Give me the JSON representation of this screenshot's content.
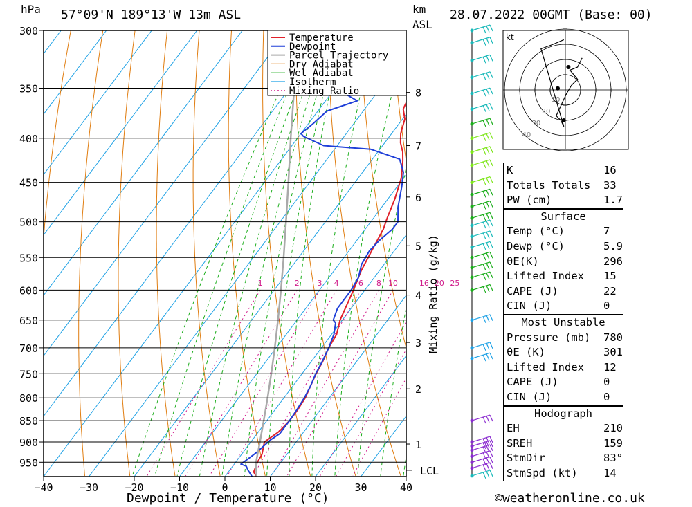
{
  "header": {
    "hpa_label": "hPa",
    "location": "57°09'N  189°13'W  13m  ASL",
    "km_label": "km",
    "asl_label": "ASL",
    "datetime": "28.07.2022  00GMT  (Base: 00)"
  },
  "footer": {
    "xlabel": "Dewpoint / Temperature (°C)",
    "copyright": "©weatheronline.co.uk"
  },
  "chart_data": {
    "type": "line",
    "title": "",
    "xlabel": "Dewpoint / Temperature (°C)",
    "ylabel": "hPa",
    "right_ylabel": "Mixing Ratio (g/kg)",
    "x_ticks": [
      -40,
      -30,
      -20,
      -10,
      0,
      10,
      20,
      30,
      40
    ],
    "pressure_ticks": [
      300,
      350,
      400,
      450,
      500,
      550,
      600,
      650,
      700,
      750,
      800,
      850,
      900,
      950
    ],
    "km_ticks": [
      "1",
      "2",
      "3",
      "4",
      "5",
      "6",
      "7",
      "8"
    ],
    "km_pressures": [
      905,
      781,
      690,
      608,
      533,
      468,
      408,
      354
    ],
    "lcl_label": "LCL",
    "lcl_pressure": 985,
    "mixing_ratio_labels": [
      "1",
      "2",
      "3",
      "4",
      "6",
      "8",
      "10",
      "16",
      "20",
      "25"
    ],
    "mixing_ratio_values": [
      1,
      2,
      3,
      4,
      6,
      8,
      10,
      16,
      20,
      25
    ],
    "legend": [
      "Temperature",
      "Dewpoint",
      "Parcel Trajectory",
      "Dry Adiabat",
      "Wet Adiabat",
      "Isotherm",
      "Mixing Ratio"
    ],
    "colors": {
      "temperature": "#e0202a",
      "dewpoint": "#1f3fd8",
      "parcel": "#aaaaaa",
      "dry_adiabat": "#e07d10",
      "wet_adiabat": "#1cae1c",
      "isotherm": "#1fa2e6",
      "mixing_ratio": "#d01a8a"
    },
    "series": [
      {
        "name": "Temperature",
        "points": [
          [
            7,
            987
          ],
          [
            5.6,
            975
          ],
          [
            4.8,
            950
          ],
          [
            4.5,
            930
          ],
          [
            3,
            900
          ],
          [
            4.5,
            875
          ],
          [
            5,
            850
          ],
          [
            5,
            825
          ],
          [
            4.7,
            800
          ],
          [
            3.9,
            775
          ],
          [
            3.1,
            750
          ],
          [
            2.5,
            725
          ],
          [
            1.6,
            700
          ],
          [
            1.1,
            675
          ],
          [
            -0.5,
            650
          ],
          [
            -2.5,
            600
          ],
          [
            -4,
            570
          ],
          [
            -5,
            540
          ],
          [
            -6,
            510
          ],
          [
            -7,
            495
          ],
          [
            -8.5,
            470
          ],
          [
            -10.5,
            445
          ],
          [
            -13,
            425
          ],
          [
            -14.5,
            415
          ],
          [
            -16.5,
            405
          ],
          [
            -18,
            395
          ],
          [
            -19.5,
            380
          ],
          [
            -21.5,
            370
          ],
          [
            -22.5,
            355
          ],
          [
            -25,
            345
          ],
          [
            -27,
            325
          ],
          [
            -30,
            315
          ],
          [
            -32,
            305
          ],
          [
            -34,
            298
          ]
        ]
      },
      {
        "name": "Dewpoint",
        "points": [
          [
            6,
            987
          ],
          [
            4,
            970
          ],
          [
            3,
            960
          ],
          [
            1.5,
            955
          ],
          [
            2.5,
            935
          ],
          [
            3,
            925
          ],
          [
            3.5,
            910
          ],
          [
            4,
            895
          ],
          [
            5,
            880
          ],
          [
            5,
            865
          ],
          [
            5,
            850
          ],
          [
            4.8,
            825
          ],
          [
            4.5,
            800
          ],
          [
            3.9,
            775
          ],
          [
            3,
            750
          ],
          [
            2.4,
            725
          ],
          [
            1.6,
            700
          ],
          [
            0.5,
            675
          ],
          [
            -1,
            655
          ],
          [
            -2,
            650
          ],
          [
            -3,
            630
          ],
          [
            -3,
            600
          ],
          [
            -3.5,
            580
          ],
          [
            -5,
            560
          ],
          [
            -5.5,
            540
          ],
          [
            -5,
            525
          ],
          [
            -4,
            510
          ],
          [
            -4,
            500
          ],
          [
            -6.5,
            480
          ],
          [
            -9,
            455
          ],
          [
            -11,
            438
          ],
          [
            -14,
            423
          ],
          [
            -22,
            412
          ],
          [
            -33,
            408
          ],
          [
            -39,
            398
          ],
          [
            -40,
            395
          ],
          [
            -39,
            385
          ],
          [
            -38,
            372
          ],
          [
            -33,
            362
          ],
          [
            -37,
            355
          ],
          [
            -37,
            342
          ],
          [
            -33,
            338
          ],
          [
            -39,
            325
          ],
          [
            -40,
            315
          ],
          [
            -36,
            312
          ],
          [
            -41,
            305
          ],
          [
            -43,
            300
          ],
          [
            -49,
            295
          ],
          [
            -53,
            292
          ],
          [
            -46,
            291
          ],
          [
            -49,
            288
          ],
          [
            -43,
            283
          ],
          [
            -47,
            278
          ],
          [
            -43,
            272
          ],
          [
            -46,
            265
          ]
        ]
      },
      {
        "name": "Parcel Trajectory",
        "points": [
          [
            7,
            987
          ],
          [
            4.5,
            950
          ],
          [
            2,
            900
          ],
          [
            -0.7,
            850
          ],
          [
            -3.6,
            800
          ],
          [
            -6.8,
            750
          ],
          [
            -10.3,
            700
          ],
          [
            -14.2,
            650
          ],
          [
            -18.5,
            600
          ],
          [
            -23.3,
            550
          ],
          [
            -28.7,
            500
          ],
          [
            -34.7,
            450
          ],
          [
            -41.5,
            400
          ],
          [
            -49,
            350
          ],
          [
            -57,
            300
          ]
        ]
      }
    ],
    "hodograph": {
      "unit_label": "kt",
      "ring_labels": [
        "10",
        "20",
        "30",
        "40"
      ],
      "path": [
        [
          11,
          -21
        ],
        [
          8,
          -15
        ],
        [
          3,
          -13
        ],
        [
          8,
          -7
        ],
        [
          4,
          -3
        ],
        [
          1,
          2
        ],
        [
          0,
          4
        ],
        [
          -6,
          17
        ],
        [
          -3,
          20
        ],
        [
          -1,
          24
        ],
        [
          -16,
          -27
        ],
        [
          -8,
          -30
        ],
        [
          -1,
          -33
        ]
      ],
      "marker_points": [
        [
          2,
          -15
        ],
        [
          -5,
          -1
        ],
        [
          -1,
          20
        ]
      ]
    },
    "wind_barbs": {
      "pressures": [
        300,
        310,
        325,
        340,
        355,
        370,
        385,
        400,
        415,
        430,
        450,
        465,
        480,
        495,
        505,
        520,
        535,
        550,
        565,
        580,
        600,
        650,
        700,
        720,
        850,
        900,
        910,
        920,
        935,
        950,
        965,
        985
      ],
      "colors": [
        "#19b9b9",
        "#19b9b9",
        "#19b9b9",
        "#19b9b9",
        "#19b9b9",
        "#19b9b9",
        "#1cae1c",
        "#7ee61b",
        "#7ee61b",
        "#7ee61b",
        "#7ee61b",
        "#1cae1c",
        "#1cae1c",
        "#1cae1c",
        "#19b9b9",
        "#19b9b9",
        "#19b9b9",
        "#1cae1c",
        "#1cae1c",
        "#1cae1c",
        "#1cae1c",
        "#1fa2e6",
        "#1fa2e6",
        "#1fa2e6",
        "#8b2cd0",
        "#8b2cd0",
        "#8b2cd0",
        "#8b2cd0",
        "#8b2cd0",
        "#8b2cd0",
        "#8b2cd0",
        "#19b9b9"
      ]
    }
  },
  "indices": {
    "rows": [
      {
        "label": "K",
        "value": "16"
      },
      {
        "label": "Totals Totals",
        "value": "33"
      },
      {
        "label": "PW (cm)",
        "value": "1.7"
      }
    ],
    "surface": {
      "title": "Surface",
      "rows": [
        {
          "label": "Temp (°C)",
          "value": "7"
        },
        {
          "label": "Dewp (°C)",
          "value": "5.9"
        },
        {
          "label": "θE(K)",
          "value": "296"
        },
        {
          "label": "Lifted Index",
          "value": "15"
        },
        {
          "label": "CAPE (J)",
          "value": "22"
        },
        {
          "label": "CIN (J)",
          "value": "0"
        }
      ]
    },
    "most_unstable": {
      "title": "Most Unstable",
      "rows": [
        {
          "label": "Pressure (mb)",
          "value": "780"
        },
        {
          "label": "θE (K)",
          "value": "301"
        },
        {
          "label": "Lifted Index",
          "value": "12"
        },
        {
          "label": "CAPE (J)",
          "value": "0"
        },
        {
          "label": "CIN (J)",
          "value": "0"
        }
      ]
    },
    "hodograph": {
      "title": "Hodograph",
      "rows": [
        {
          "label": "EH",
          "value": "210"
        },
        {
          "label": "SREH",
          "value": "159"
        },
        {
          "label": "StmDir",
          "value": "83°"
        },
        {
          "label": "StmSpd (kt)",
          "value": "14"
        }
      ]
    }
  }
}
